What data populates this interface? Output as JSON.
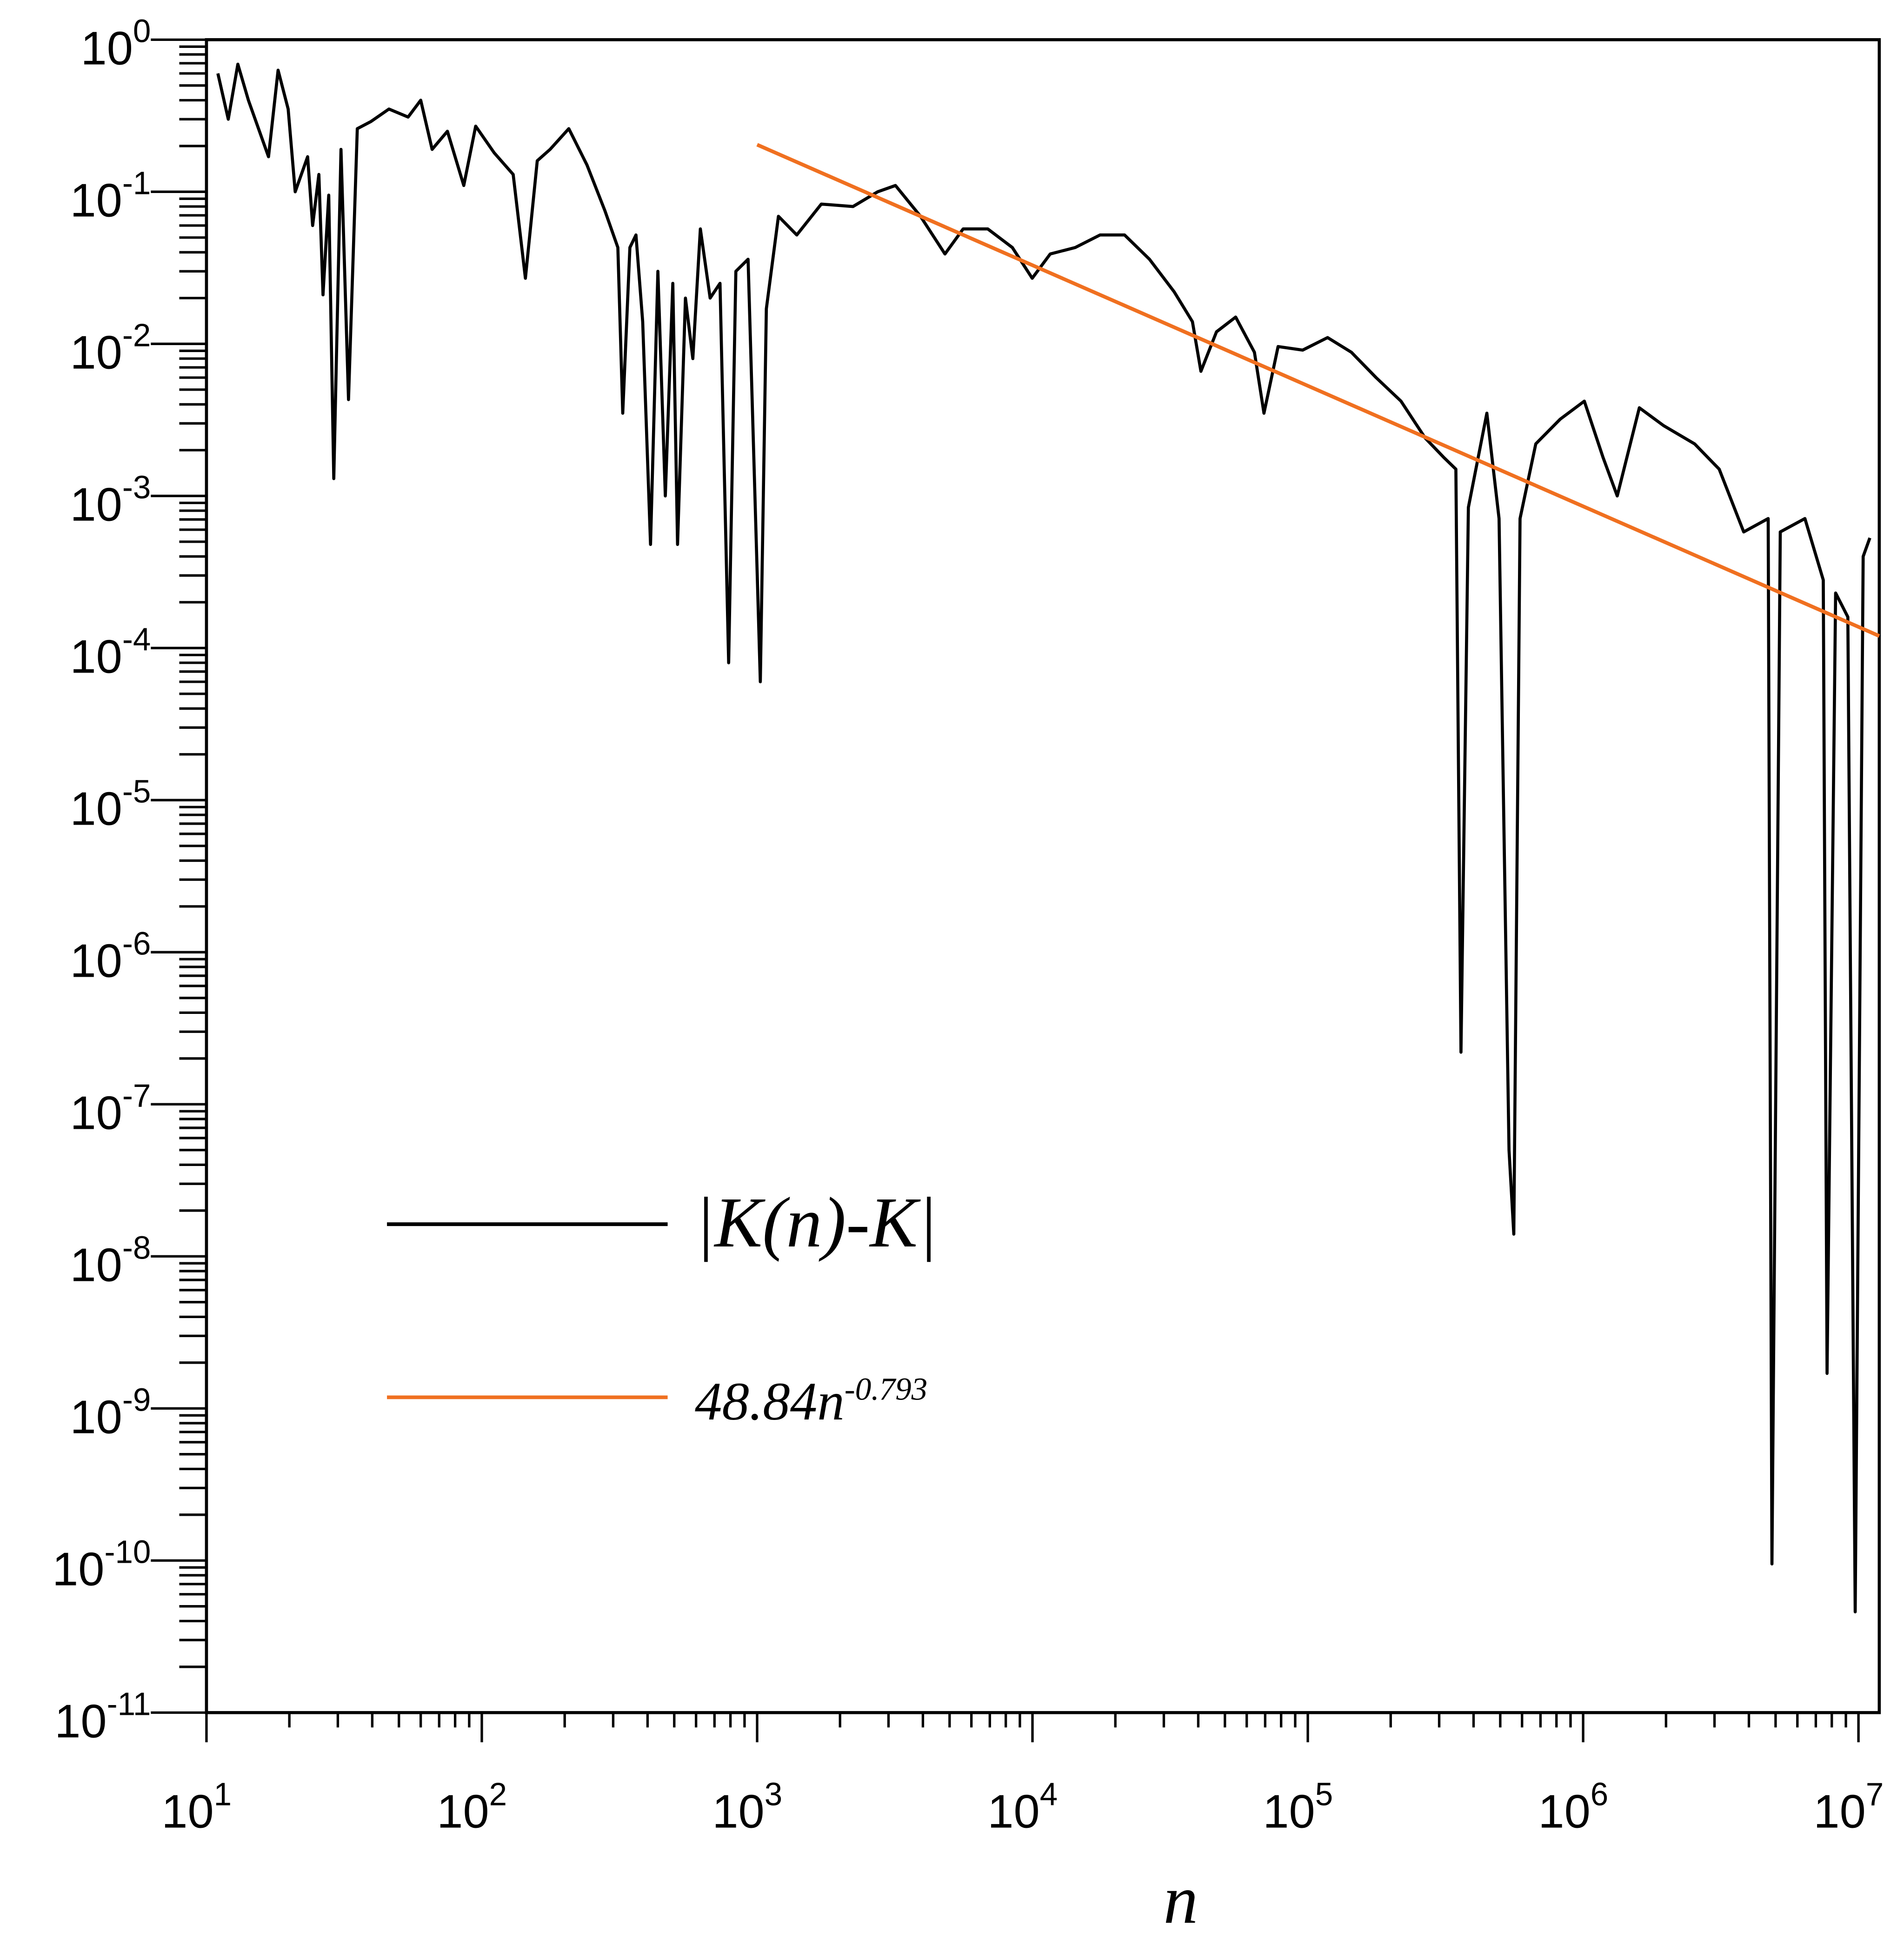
{
  "chart_data": {
    "type": "line",
    "xlog": true,
    "ylog": true,
    "minor_ticks": true,
    "xlabel": "n",
    "xlim": [
      10,
      11900000
    ],
    "ylim": [
      1e-11,
      1
    ],
    "xticks": [
      {
        "value": 10,
        "label": "10",
        "exponent": "1"
      },
      {
        "value": 100,
        "label": "10",
        "exponent": "2"
      },
      {
        "value": 1000,
        "label": "10",
        "exponent": "3"
      },
      {
        "value": 10000,
        "label": "10",
        "exponent": "4"
      },
      {
        "value": 100000,
        "label": "10",
        "exponent": "5"
      },
      {
        "value": 1000000,
        "label": "10",
        "exponent": "6"
      },
      {
        "value": 10000000,
        "label": "10",
        "exponent": "7"
      }
    ],
    "yticks": [
      {
        "value": 1,
        "label": "10",
        "exponent": "0"
      },
      {
        "value": 0.1,
        "label": "10",
        "exponent": "-1"
      },
      {
        "value": 0.01,
        "label": "10",
        "exponent": "-2"
      },
      {
        "value": 0.001,
        "label": "10",
        "exponent": "-3"
      },
      {
        "value": 0.0001,
        "label": "10",
        "exponent": "-4"
      },
      {
        "value": 1e-05,
        "label": "10",
        "exponent": "-5"
      },
      {
        "value": 1e-06,
        "label": "10",
        "exponent": "-6"
      },
      {
        "value": 1e-07,
        "label": "10",
        "exponent": "-7"
      },
      {
        "value": 1e-08,
        "label": "10",
        "exponent": "-8"
      },
      {
        "value": 1e-09,
        "label": "10",
        "exponent": "-9"
      },
      {
        "value": 1e-10,
        "label": "10",
        "exponent": "-10"
      },
      {
        "value": 1e-11,
        "label": "10",
        "exponent": "-11"
      }
    ],
    "series": [
      {
        "name": "|K(n)-K|",
        "color": "#000000",
        "x": [
          11,
          12,
          13,
          14.2,
          16.8,
          18.2,
          19.8,
          21,
          23.3,
          24.3,
          25.6,
          26.5,
          27.8,
          29,
          30.8,
          32.8,
          35.3,
          39.6,
          46,
          54,
          60,
          66,
          75,
          86,
          95,
          111,
          130,
          144,
          159,
          177,
          207,
          241,
          280,
          312,
          325,
          345,
          363,
          384,
          410,
          436,
          464,
          494,
          514,
          549,
          584,
          622,
          675,
          733,
          788,
          837,
          927,
          1027,
          1080,
          1195,
          1393,
          1710,
          2230,
          2740,
          3180,
          3920,
          4810,
          5600,
          6880,
          8450,
          9980,
          11600,
          14300,
          17600,
          21600,
          26600,
          32700,
          38100,
          40900,
          46600,
          54700,
          64000,
          69300,
          78000,
          95800,
          118000,
          144000,
          177000,
          218000,
          267000,
          311000,
          345000,
          360000,
          383000,
          447000,
          495000,
          538000,
          560000,
          590000,
          673000,
          826000,
          1010000,
          1180000,
          1330000,
          1600000,
          1960000,
          2540000,
          3120000,
          3830000,
          4700000,
          4850000,
          5200000,
          6390000,
          7450000,
          7690000,
          8260000,
          9150000,
          9730000,
          10400000,
          11000000
        ],
        "values": [
          0.6,
          0.3,
          0.69,
          0.4,
          0.17,
          0.63,
          0.35,
          0.1,
          0.17,
          0.06,
          0.13,
          0.021,
          0.095,
          0.0013,
          0.19,
          0.0043,
          0.26,
          0.29,
          0.35,
          0.31,
          0.4,
          0.19,
          0.25,
          0.11,
          0.27,
          0.18,
          0.13,
          0.027,
          0.16,
          0.19,
          0.26,
          0.15,
          0.075,
          0.043,
          0.0035,
          0.043,
          0.052,
          0.014,
          0.00048,
          0.03,
          0.001,
          0.025,
          0.00048,
          0.02,
          0.008,
          0.057,
          0.02,
          0.025,
          8e-05,
          0.03,
          0.036,
          6e-05,
          0.017,
          0.069,
          0.052,
          0.083,
          0.08,
          0.1,
          0.11,
          0.069,
          0.039,
          0.057,
          0.057,
          0.043,
          0.027,
          0.039,
          0.043,
          0.052,
          0.052,
          0.036,
          0.022,
          0.014,
          0.0066,
          0.012,
          0.015,
          0.0088,
          0.0035,
          0.0096,
          0.0091,
          0.011,
          0.0088,
          0.006,
          0.0042,
          0.0024,
          0.0018,
          0.0015,
          2.2e-07,
          0.00084,
          0.0035,
          0.00071,
          5e-08,
          1.4e-08,
          0.00071,
          0.0022,
          0.0032,
          0.0042,
          0.0018,
          0.001,
          0.0038,
          0.0029,
          0.0022,
          0.0015,
          0.00058,
          0.00071,
          9.5e-11,
          0.00058,
          0.00071,
          0.00028,
          1.7e-09,
          0.00023,
          0.00016,
          4.6e-11,
          0.0004,
          0.00053
        ]
      },
      {
        "name": "48.84n",
        "name_superscript": "-0.793",
        "color": "#f07020",
        "x": [
          1000,
          11900000
        ],
        "values": [
          0.204,
          0.00012
        ]
      }
    ]
  }
}
